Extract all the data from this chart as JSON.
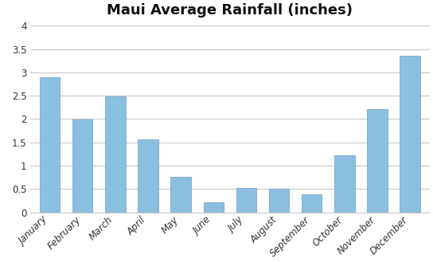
{
  "title": "Maui Average Rainfall (inches)",
  "categories": [
    "January",
    "February",
    "March",
    "April",
    "May",
    "June",
    "July",
    "August",
    "September",
    "October",
    "November",
    "December"
  ],
  "values": [
    2.9,
    1.99,
    2.49,
    1.57,
    0.76,
    0.21,
    0.52,
    0.51,
    0.39,
    1.22,
    2.22,
    3.36
  ],
  "bar_color_top": "#a8c8e8",
  "bar_color_mid": "#7ab0d8",
  "bar_color_bot": "#5a9ec9",
  "ylim": [
    0,
    4.05
  ],
  "yticks": [
    0,
    0.5,
    1.0,
    1.5,
    2.0,
    2.5,
    3.0,
    3.5,
    4.0
  ],
  "ytick_labels": [
    "0",
    "0.5",
    "1",
    "1.5",
    "2",
    "2.5",
    "3",
    "3.5",
    "4"
  ],
  "background_color": "#ffffff",
  "plot_bg_color": "#ffffff",
  "grid_color": "#c8c8c8",
  "title_fontsize": 13,
  "tick_fontsize": 8.5,
  "xlabel_fontsize": 8.5,
  "bar_width": 0.62
}
